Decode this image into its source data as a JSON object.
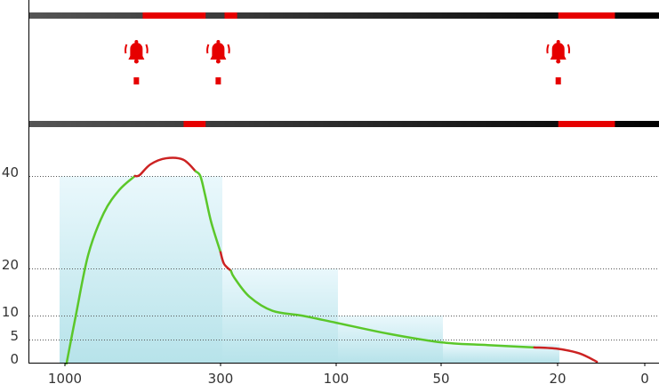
{
  "colors": {
    "alarm": "#e60000",
    "curve_ok": "#5bc72a",
    "curve_alarm": "#cc2222",
    "track_start": "#555555",
    "track_end": "#000000",
    "column_fill": "#b7e3ea"
  },
  "icons": [
    "alarm-bell-icon"
  ],
  "timeline": {
    "top_track_alarm_segments": [
      [
        0.18,
        0.28
      ],
      [
        0.31,
        0.33
      ],
      [
        0.84,
        0.93
      ]
    ],
    "bottom_track_alarm_segments": [
      [
        0.245,
        0.28
      ],
      [
        0.84,
        0.93
      ]
    ],
    "alarm_markers": [
      0.17,
      0.3,
      0.84
    ]
  },
  "chart_data": {
    "type": "line",
    "title": "",
    "xlabel": "",
    "ylabel": "",
    "x_ticks": [
      "1000",
      "300",
      "100",
      "50",
      "20",
      "0"
    ],
    "y_ticks": [
      "40",
      "20",
      "10",
      "5",
      "0"
    ],
    "y_tick_values": [
      40,
      20,
      10,
      5,
      0
    ],
    "ylim": [
      0,
      40
    ],
    "grid": "horizontal dotted",
    "bins": [
      {
        "from": "1000",
        "to": "300",
        "value": 40
      },
      {
        "from": "300",
        "to": "100",
        "value": 20
      },
      {
        "from": "100",
        "to": "50",
        "value": 10
      },
      {
        "from": "50",
        "to": "20",
        "value": 4
      }
    ],
    "curve": [
      {
        "x": 0.0,
        "y": -2,
        "state": "ok"
      },
      {
        "x": 0.07,
        "y": 10,
        "state": "ok"
      },
      {
        "x": 0.15,
        "y": 23,
        "state": "ok"
      },
      {
        "x": 0.25,
        "y": 32,
        "state": "ok"
      },
      {
        "x": 0.35,
        "y": 37,
        "state": "ok"
      },
      {
        "x": 0.45,
        "y": 40,
        "state": "ok"
      },
      {
        "x": 0.48,
        "y": 40.2,
        "state": "alarm"
      },
      {
        "x": 0.55,
        "y": 42.5,
        "state": "alarm"
      },
      {
        "x": 0.65,
        "y": 43.8,
        "state": "alarm"
      },
      {
        "x": 0.76,
        "y": 43.5,
        "state": "alarm"
      },
      {
        "x": 0.84,
        "y": 41,
        "state": "alarm"
      },
      {
        "x": 0.87,
        "y": 40,
        "state": "ok"
      },
      {
        "x": 0.9,
        "y": 36,
        "state": "ok"
      },
      {
        "x": 0.94,
        "y": 30,
        "state": "ok"
      },
      {
        "x": 1.0,
        "y": 23.5,
        "state": "ok"
      },
      {
        "x": 1.03,
        "y": 21,
        "state": "alarm"
      },
      {
        "x": 1.09,
        "y": 19.5,
        "state": "alarm"
      },
      {
        "x": 1.12,
        "y": 18,
        "state": "ok"
      },
      {
        "x": 1.25,
        "y": 14,
        "state": "ok"
      },
      {
        "x": 1.45,
        "y": 11,
        "state": "ok"
      },
      {
        "x": 1.7,
        "y": 10,
        "state": "ok"
      },
      {
        "x": 2.0,
        "y": 8.5,
        "state": "ok"
      },
      {
        "x": 2.5,
        "y": 6.2,
        "state": "ok"
      },
      {
        "x": 3.0,
        "y": 4.4,
        "state": "ok"
      },
      {
        "x": 3.4,
        "y": 3.8,
        "state": "ok"
      },
      {
        "x": 3.8,
        "y": 3.3,
        "state": "ok"
      },
      {
        "x": 4.0,
        "y": 3.0,
        "state": "alarm"
      },
      {
        "x": 4.25,
        "y": 2.0,
        "state": "alarm"
      },
      {
        "x": 4.45,
        "y": 0.2,
        "state": "alarm"
      }
    ]
  }
}
